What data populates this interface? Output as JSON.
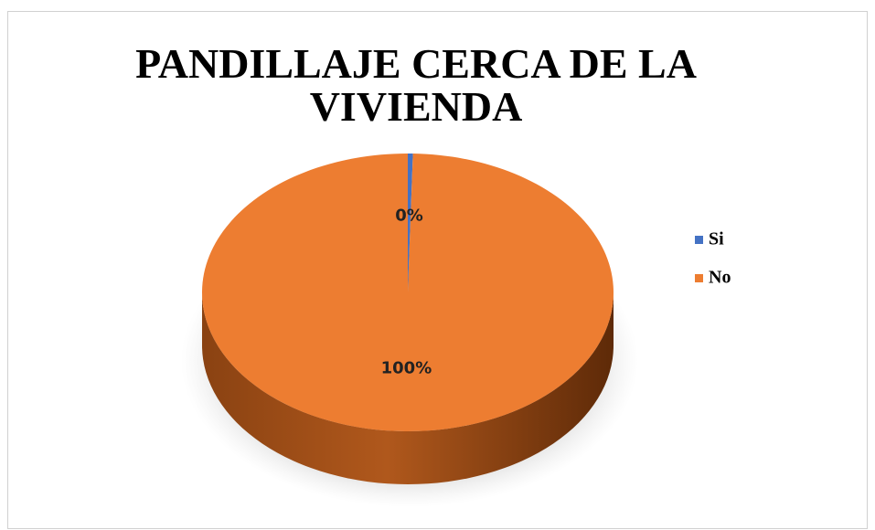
{
  "chart_data": {
    "type": "pie",
    "title": "PANDILLAJE CERCA DE LA VIVIENDA",
    "title_lines": [
      "PANDILLAJE CERCA DE LA",
      "VIVIENDA"
    ],
    "categories": [
      "Si",
      "No"
    ],
    "values": [
      0.4,
      99.6
    ],
    "value_labels": [
      "0%",
      "100%"
    ],
    "colors": [
      "#4472c4",
      "#ed7d31"
    ],
    "legend": "right"
  }
}
